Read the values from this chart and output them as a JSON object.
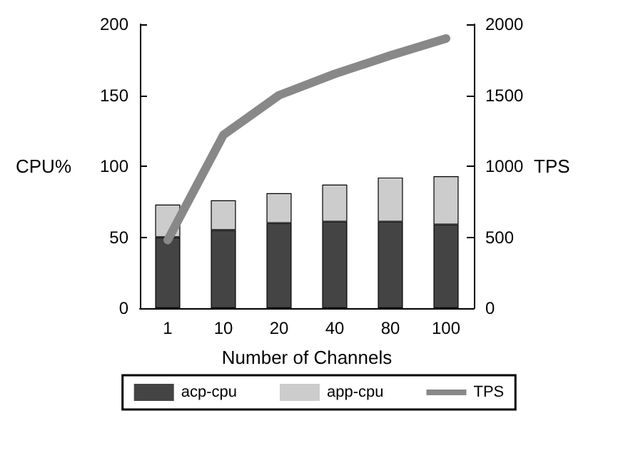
{
  "chart_data": {
    "type": "bar",
    "stacked": true,
    "xlabel": "Number of Channels",
    "ylabel": "CPU%",
    "y2label": "TPS",
    "categories": [
      "1",
      "10",
      "20",
      "40",
      "80",
      "100"
    ],
    "series": [
      {
        "name": "acp-cpu",
        "color": "#444444",
        "values": [
          50,
          55,
          60,
          61,
          61,
          59
        ]
      },
      {
        "name": "app-cpu",
        "color": "#cccccc",
        "values": [
          23,
          21,
          21,
          26,
          31,
          34
        ]
      },
      {
        "name": "TPS",
        "type": "line",
        "axis": "y2",
        "color": "#888888",
        "values": [
          480,
          1220,
          1500,
          1650,
          1780,
          1900
        ]
      }
    ],
    "ylim": [
      0,
      200
    ],
    "yticks": [
      0,
      50,
      100,
      150,
      200
    ],
    "y2lim": [
      0,
      2000
    ],
    "y2ticks": [
      0,
      500,
      1000,
      1500,
      2000
    ],
    "grid": false,
    "legend": "bottom",
    "marker": "none"
  }
}
